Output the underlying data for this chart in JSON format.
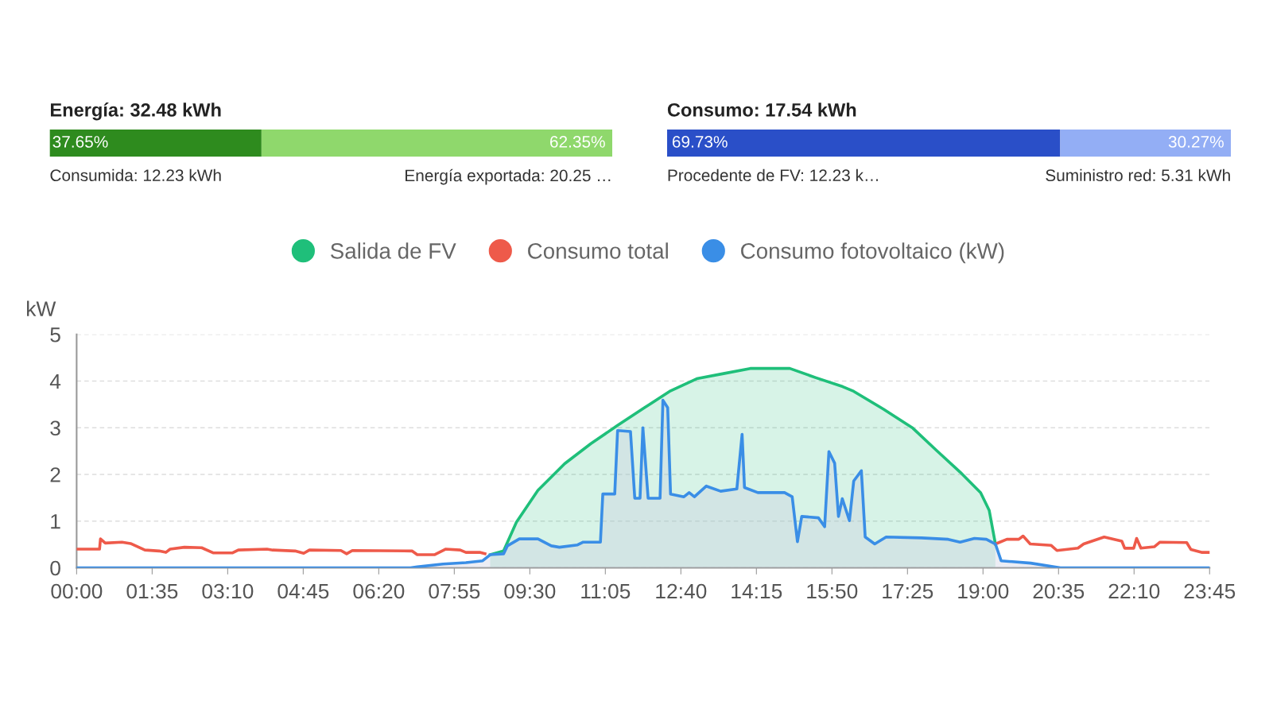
{
  "chart_data": [
    {
      "type": "bar",
      "orientation": "horizontal",
      "stacked": true,
      "title": "Energía: 32.48 kWh",
      "categories": [
        null
      ],
      "xlim": [
        0,
        100
      ],
      "tick_labels": false,
      "legend": false,
      "series": [
        {
          "color": "#2e8b1e",
          "values": [
            37.65
          ],
          "value_labels": [
            "37.65%"
          ]
        },
        {
          "color": "#8fd86c",
          "values": [
            62.35
          ],
          "value_labels": [
            "62.35%"
          ]
        }
      ],
      "annotations": [
        "Consumida: 12.23 kWh",
        "Energía exportada: 20.25 …"
      ]
    },
    {
      "type": "bar",
      "orientation": "horizontal",
      "stacked": true,
      "title": "Consumo: 17.54 kWh",
      "categories": [
        null
      ],
      "xlim": [
        0,
        100
      ],
      "tick_labels": false,
      "legend": false,
      "series": [
        {
          "color": "#2a4fc8",
          "values": [
            69.73
          ],
          "value_labels": [
            "69.73%"
          ]
        },
        {
          "color": "#93aef5",
          "values": [
            30.27
          ],
          "value_labels": [
            "30.27%"
          ]
        }
      ],
      "annotations": [
        "Procedente de FV: 12.23 k…",
        "Suministro red: 5.31 kWh"
      ]
    },
    {
      "type": "line",
      "ylabel": "kW",
      "xlim": [
        0,
        23.75
      ],
      "ylim": [
        0,
        5
      ],
      "yticks": [
        0,
        1,
        2,
        3,
        4,
        5
      ],
      "xticks": [
        {
          "value": 0,
          "label": "00:00"
        },
        {
          "value": 1.5833,
          "label": "01:35"
        },
        {
          "value": 3.1667,
          "label": "03:10"
        },
        {
          "value": 4.75,
          "label": "04:45"
        },
        {
          "value": 6.3333,
          "label": "06:20"
        },
        {
          "value": 7.9167,
          "label": "07:55"
        },
        {
          "value": 9.5,
          "label": "09:30"
        },
        {
          "value": 11.0833,
          "label": "11:05"
        },
        {
          "value": 12.6667,
          "label": "12:40"
        },
        {
          "value": 14.25,
          "label": "14:15"
        },
        {
          "value": 15.8333,
          "label": "15:50"
        },
        {
          "value": 17.4167,
          "label": "17:25"
        },
        {
          "value": 19,
          "label": "19:00"
        },
        {
          "value": 20.5833,
          "label": "20:35"
        },
        {
          "value": 22.1667,
          "label": "22:10"
        },
        {
          "value": 23.75,
          "label": "23:45"
        }
      ],
      "grid": "y",
      "legend": "top",
      "marker": "none",
      "line_style": "solid",
      "series": [
        {
          "name": "Salida de FV",
          "type": "area",
          "color": "#1fbf7a",
          "x": [
            8.67,
            8.95,
            9.22,
            9.67,
            10.23,
            10.78,
            11.34,
            11.89,
            12.45,
            13.0,
            13.56,
            14.12,
            14.95,
            15.5,
            16.06,
            16.29,
            16.91,
            17.53,
            18.02,
            18.52,
            18.95,
            19.13,
            19.26
          ],
          "values": [
            0.28,
            0.36,
            0.98,
            1.66,
            2.23,
            2.66,
            3.05,
            3.42,
            3.79,
            4.05,
            4.16,
            4.27,
            4.27,
            4.07,
            3.88,
            3.78,
            3.4,
            2.99,
            2.52,
            2.05,
            1.61,
            1.23,
            0.51
          ]
        },
        {
          "name": "Consumo total",
          "type": "line",
          "color": "#ee5a4a",
          "x": [
            0,
            0.48,
            0.5,
            0.6,
            0.95,
            1.13,
            1.43,
            1.73,
            1.87,
            1.96,
            2.26,
            2.62,
            2.86,
            3.27,
            3.39,
            3.99,
            4.11,
            4.58,
            4.76,
            4.88,
            5.54,
            5.66,
            5.78,
            7.03,
            7.14,
            7.5,
            7.74,
            8.04,
            8.16,
            8.45,
            8.56,
            13.0,
            19.26,
            19.5,
            19.75,
            19.84,
            19.99,
            20.43,
            20.55,
            20.99,
            21.11,
            21.54,
            21.91,
            21.97,
            22.16,
            22.22,
            22.31,
            22.59,
            22.71,
            23.27,
            23.36,
            23.58,
            23.75
          ],
          "values": [
            0.4,
            0.4,
            0.62,
            0.53,
            0.55,
            0.52,
            0.38,
            0.36,
            0.33,
            0.4,
            0.44,
            0.43,
            0.32,
            0.32,
            0.38,
            0.4,
            0.38,
            0.36,
            0.31,
            0.38,
            0.37,
            0.3,
            0.37,
            0.36,
            0.28,
            0.28,
            0.4,
            0.38,
            0.33,
            0.33,
            0.3,
            null,
            0.51,
            0.61,
            0.61,
            0.68,
            0.51,
            0.48,
            0.37,
            0.42,
            0.51,
            0.66,
            0.57,
            0.42,
            0.42,
            0.63,
            0.42,
            0.45,
            0.55,
            0.54,
            0.39,
            0.33,
            0.33
          ]
        },
        {
          "name": "Consumo fotovoltaico (kW)",
          "type": "area",
          "color": "#3a8ee6",
          "x": [
            0,
            7.0,
            7.14,
            7.68,
            8.16,
            8.51,
            8.67,
            8.95,
            9.03,
            9.28,
            9.67,
            9.95,
            10.12,
            10.5,
            10.62,
            10.98,
            11.03,
            11.28,
            11.34,
            11.61,
            11.7,
            11.81,
            11.87,
            11.98,
            12.23,
            12.29,
            12.39,
            12.45,
            12.73,
            12.84,
            12.95,
            13.2,
            13.5,
            13.84,
            13.95,
            14.0,
            14.28,
            14.84,
            15.0,
            15.11,
            15.2,
            15.55,
            15.68,
            15.77,
            15.89,
            15.97,
            16.05,
            16.2,
            16.29,
            16.45,
            16.53,
            16.73,
            16.97,
            17.71,
            18.27,
            18.52,
            18.82,
            19.07,
            19.26,
            19.38,
            20.0,
            20.62,
            23.75
          ],
          "values": [
            0,
            0,
            0.02,
            0.08,
            0.11,
            0.15,
            0.28,
            0.3,
            0.47,
            0.62,
            0.62,
            0.47,
            0.44,
            0.49,
            0.55,
            0.55,
            1.58,
            1.58,
            2.94,
            2.92,
            1.49,
            1.49,
            3.0,
            1.49,
            1.49,
            3.59,
            3.43,
            1.58,
            1.52,
            1.61,
            1.52,
            1.75,
            1.64,
            1.69,
            2.86,
            1.72,
            1.61,
            1.61,
            1.52,
            0.56,
            1.1,
            1.07,
            0.88,
            2.49,
            2.24,
            1.1,
            1.48,
            1.01,
            1.86,
            2.08,
            0.66,
            0.51,
            0.66,
            0.64,
            0.61,
            0.55,
            0.63,
            0.61,
            0.51,
            0.15,
            0.1,
            0,
            0
          ]
        }
      ]
    }
  ]
}
